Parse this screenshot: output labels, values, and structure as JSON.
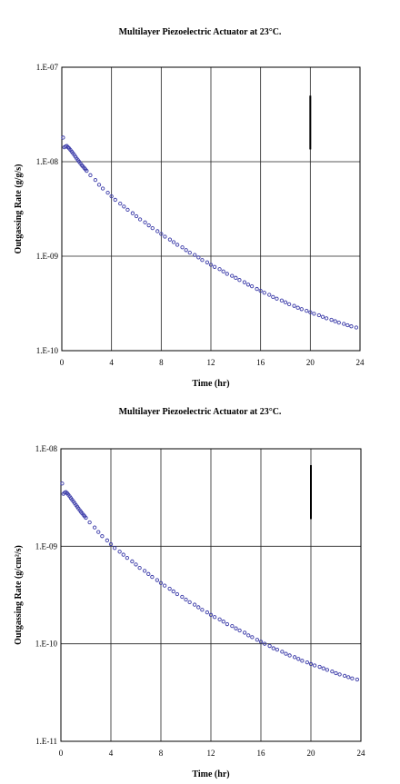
{
  "chart_data": [
    {
      "type": "scatter",
      "title": "Multilayer Piezoelectric Actuator at 23°C.",
      "xlabel": "Time (hr)",
      "ylabel": "Outgassing Rate (g/g/s)",
      "yscale": "log",
      "xlim": [
        0,
        24
      ],
      "ylim": [
        1e-10,
        1e-07
      ],
      "x_ticks": [
        0,
        4,
        8,
        12,
        16,
        20,
        24
      ],
      "y_ticks": [
        "1.E-10",
        "1.E-09",
        "1.E-08",
        "1.E-07"
      ],
      "grid": true,
      "marker_color": "#3a3aa8",
      "series": [
        {
          "x": [
            0.1,
            0.2,
            0.3,
            0.4,
            0.5,
            0.6,
            0.7,
            0.8,
            0.9,
            1.0,
            1.1,
            1.2,
            1.3,
            1.4,
            1.5,
            1.6,
            1.7,
            1.8,
            1.9,
            2.0,
            2.3,
            2.7,
            3.0,
            3.3,
            3.7,
            4.0,
            4.3,
            4.7,
            5.0,
            5.3,
            5.7,
            6.0,
            6.3,
            6.7,
            7.0,
            7.3,
            7.7,
            8.0,
            8.3,
            8.7,
            9.0,
            9.3,
            9.7,
            10.0,
            10.3,
            10.7,
            11.0,
            11.3,
            11.7,
            12.0,
            12.3,
            12.7,
            13.0,
            13.3,
            13.7,
            14.0,
            14.3,
            14.7,
            15.0,
            15.3,
            15.7,
            16.0,
            16.3,
            16.7,
            17.0,
            17.3,
            17.7,
            18.0,
            18.3,
            18.7,
            19.0,
            19.3,
            19.7,
            20.0,
            20.3,
            20.7,
            21.0,
            21.3,
            21.7,
            22.0,
            22.3,
            22.7,
            23.0,
            23.3,
            23.7
          ],
          "y": [
            1.8e-08,
            1.42e-08,
            1.45e-08,
            1.47e-08,
            1.42e-08,
            1.38e-08,
            1.33e-08,
            1.28e-08,
            1.23e-08,
            1.18e-08,
            1.13e-08,
            1.08e-08,
            1.04e-08,
            1e-08,
            9.6e-09,
            9.2e-09,
            8.9e-09,
            8.6e-09,
            8.3e-09,
            8e-09,
            7.2e-09,
            6.4e-09,
            5.7e-09,
            5.2e-09,
            4.7e-09,
            4.3e-09,
            3.95e-09,
            3.6e-09,
            3.35e-09,
            3.1e-09,
            2.85e-09,
            2.65e-09,
            2.45e-09,
            2.28e-09,
            2.12e-09,
            1.98e-09,
            1.84e-09,
            1.72e-09,
            1.61e-09,
            1.5e-09,
            1.41e-09,
            1.32e-09,
            1.24e-09,
            1.16e-09,
            1.09e-09,
            1.03e-09,
            9.7e-10,
            9.1e-10,
            8.6e-10,
            8.1e-10,
            7.7e-10,
            7.3e-10,
            6.9e-10,
            6.5e-10,
            6.2e-10,
            5.9e-10,
            5.6e-10,
            5.3e-10,
            5e-10,
            4.8e-10,
            4.5e-10,
            4.3e-10,
            4.1e-10,
            3.9e-10,
            3.7e-10,
            3.55e-10,
            3.4e-10,
            3.25e-10,
            3.1e-10,
            2.98e-10,
            2.85e-10,
            2.75e-10,
            2.64e-10,
            2.55e-10,
            2.46e-10,
            2.37e-10,
            2.28e-10,
            2.2e-10,
            2.12e-10,
            2.05e-10,
            1.98e-10,
            1.92e-10,
            1.86e-10,
            1.81e-10,
            1.76e-10
          ]
        }
      ],
      "annotation_mark": {
        "x": 20,
        "y_from": 1.35e-08,
        "y_to": 5e-08
      }
    },
    {
      "type": "scatter",
      "title": "Multilayer Piezoelectric Actuator at 23°C.",
      "xlabel": "Time (hr)",
      "ylabel": "Outgassing Rate (g/cm²/s)",
      "yscale": "log",
      "xlim": [
        0,
        24
      ],
      "ylim": [
        1e-11,
        1e-08
      ],
      "x_ticks": [
        0,
        4,
        8,
        12,
        16,
        20,
        24
      ],
      "y_ticks": [
        "1.E-11",
        "1.E-10",
        "1.E-09",
        "1.E-08"
      ],
      "grid": true,
      "marker_color": "#3a3aa8",
      "series": [
        {
          "x": [
            0.1,
            0.2,
            0.3,
            0.4,
            0.5,
            0.6,
            0.7,
            0.8,
            0.9,
            1.0,
            1.1,
            1.2,
            1.3,
            1.4,
            1.5,
            1.6,
            1.7,
            1.8,
            1.9,
            2.0,
            2.3,
            2.7,
            3.0,
            3.3,
            3.7,
            4.0,
            4.3,
            4.7,
            5.0,
            5.3,
            5.7,
            6.0,
            6.3,
            6.7,
            7.0,
            7.3,
            7.7,
            8.0,
            8.3,
            8.7,
            9.0,
            9.3,
            9.7,
            10.0,
            10.3,
            10.7,
            11.0,
            11.3,
            11.7,
            12.0,
            12.3,
            12.7,
            13.0,
            13.3,
            13.7,
            14.0,
            14.3,
            14.7,
            15.0,
            15.3,
            15.7,
            16.0,
            16.3,
            16.7,
            17.0,
            17.3,
            17.7,
            18.0,
            18.3,
            18.7,
            19.0,
            19.3,
            19.7,
            20.0,
            20.3,
            20.7,
            21.0,
            21.3,
            21.7,
            22.0,
            22.3,
            22.7,
            23.0,
            23.3,
            23.7
          ],
          "y": [
            4.4e-09,
            3.45e-09,
            3.55e-09,
            3.6e-09,
            3.5e-09,
            3.38e-09,
            3.25e-09,
            3.12e-09,
            3e-09,
            2.88e-09,
            2.77e-09,
            2.65e-09,
            2.55e-09,
            2.45e-09,
            2.35e-09,
            2.26e-09,
            2.18e-09,
            2.1e-09,
            2.03e-09,
            1.96e-09,
            1.76e-09,
            1.56e-09,
            1.4e-09,
            1.27e-09,
            1.15e-09,
            1.05e-09,
            9.6e-10,
            8.8e-10,
            8.2e-10,
            7.6e-10,
            7e-10,
            6.5e-10,
            6e-10,
            5.6e-10,
            5.2e-10,
            4.85e-10,
            4.5e-10,
            4.2e-10,
            3.95e-10,
            3.67e-10,
            3.45e-10,
            3.23e-10,
            3.03e-10,
            2.84e-10,
            2.67e-10,
            2.52e-10,
            2.37e-10,
            2.23e-10,
            2.1e-10,
            1.98e-10,
            1.88e-10,
            1.78e-10,
            1.69e-10,
            1.59e-10,
            1.52e-10,
            1.44e-10,
            1.37e-10,
            1.3e-10,
            1.22e-10,
            1.17e-10,
            1.1e-10,
            1.05e-10,
            1e-10,
            9.5e-11,
            9e-11,
            8.7e-11,
            8.3e-11,
            7.9e-11,
            7.6e-11,
            7.3e-11,
            7e-11,
            6.7e-11,
            6.45e-11,
            6.2e-11,
            6e-11,
            5.8e-11,
            5.6e-11,
            5.4e-11,
            5.2e-11,
            5e-11,
            4.85e-11,
            4.7e-11,
            4.55e-11,
            4.42e-11,
            4.3e-11
          ]
        }
      ],
      "annotation_mark": {
        "x": 20,
        "y_from": 1.9e-09,
        "y_to": 6.8e-09
      }
    }
  ]
}
